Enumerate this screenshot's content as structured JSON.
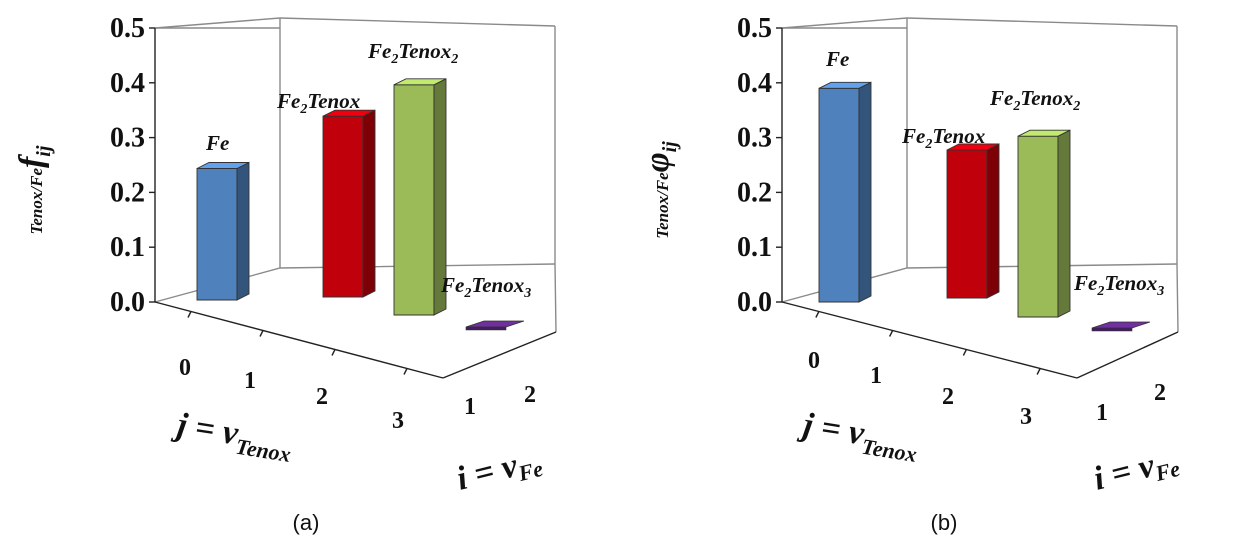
{
  "chart_data": [
    {
      "type": "bar",
      "panel_label": "(a)",
      "y_axis_prefix": "Tenox/Fe",
      "y_axis_symbol": "f",
      "y_axis_subscript": "ij",
      "j_axis_label": "j = ν",
      "j_axis_subscript": "Tenox",
      "i_axis_label": "i = ν",
      "i_axis_subscript": "Fe",
      "yticks": [
        "0.0",
        "0.1",
        "0.2",
        "0.3",
        "0.4",
        "0.5"
      ],
      "ylim": [
        0,
        0.5
      ],
      "j_categories": [
        "0",
        "1",
        "2",
        "3"
      ],
      "i_categories": [
        "1",
        "2"
      ],
      "series": [
        {
          "label": "Fe",
          "sub": "",
          "j": 0,
          "i": 2,
          "value": 0.24,
          "color": "#4f81bd"
        },
        {
          "label": "Fe2Tenox",
          "sub": "",
          "j": 1,
          "i": 2,
          "value": 0.33,
          "color": "#c0000b"
        },
        {
          "label": "Fe2Tenox",
          "sub": "2",
          "j": 2,
          "i": 2,
          "value": 0.42,
          "color": "#9bbb59"
        },
        {
          "label": "Fe2Tenox",
          "sub": "3",
          "j": 3,
          "i": 2,
          "value": 0.005,
          "color": "#7030a0"
        }
      ]
    },
    {
      "type": "bar",
      "panel_label": "(b)",
      "y_axis_prefix": "Tenox/Fe",
      "y_axis_symbol": "φ",
      "y_axis_subscript": "ij",
      "j_axis_label": "j = ν",
      "j_axis_subscript": "Tenox",
      "i_axis_label": "i = ν",
      "i_axis_subscript": "Fe",
      "yticks": [
        "0.0",
        "0.1",
        "0.2",
        "0.3",
        "0.4",
        "0.5"
      ],
      "ylim": [
        0,
        0.5
      ],
      "j_categories": [
        "0",
        "1",
        "2",
        "3"
      ],
      "i_categories": [
        "1",
        "2"
      ],
      "series": [
        {
          "label": "Fe",
          "sub": "",
          "j": 0,
          "i": 2,
          "value": 0.39,
          "color": "#4f81bd"
        },
        {
          "label": "Fe2Tenox",
          "sub": "",
          "j": 1,
          "i": 2,
          "value": 0.27,
          "color": "#c0000b"
        },
        {
          "label": "Fe2Tenox",
          "sub": "2",
          "j": 2,
          "i": 2,
          "value": 0.33,
          "color": "#9bbb59"
        },
        {
          "label": "Fe2Tenox",
          "sub": "3",
          "j": 3,
          "i": 2,
          "value": 0.005,
          "color": "#7030a0"
        }
      ]
    }
  ]
}
